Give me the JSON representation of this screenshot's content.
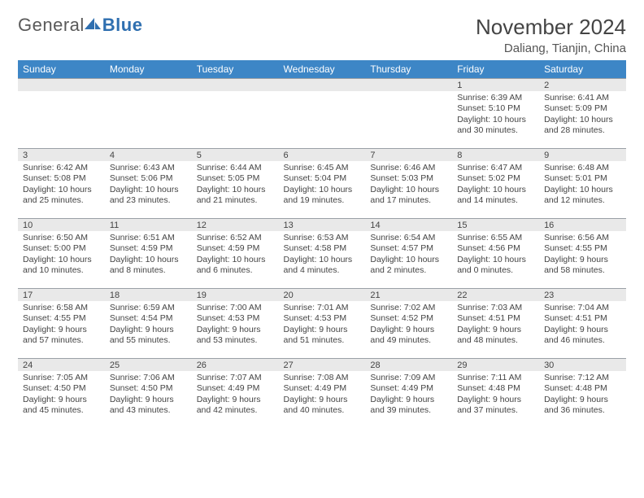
{
  "logo": {
    "general": "General",
    "blue": "Blue"
  },
  "title": "November 2024",
  "location": "Daliang, Tianjin, China",
  "colors": {
    "header_bg": "#3d86c6",
    "header_fg": "#ffffff",
    "daynum_bg": "#e9e9e9",
    "daynum_border": "#9aa0a6",
    "text": "#444444",
    "logo_gray": "#5a5a5a",
    "logo_blue": "#2f6fb0"
  },
  "weekdays": [
    "Sunday",
    "Monday",
    "Tuesday",
    "Wednesday",
    "Thursday",
    "Friday",
    "Saturday"
  ],
  "weeks": [
    [
      {
        "n": "",
        "sr": "",
        "ss": "",
        "dl": ""
      },
      {
        "n": "",
        "sr": "",
        "ss": "",
        "dl": ""
      },
      {
        "n": "",
        "sr": "",
        "ss": "",
        "dl": ""
      },
      {
        "n": "",
        "sr": "",
        "ss": "",
        "dl": ""
      },
      {
        "n": "",
        "sr": "",
        "ss": "",
        "dl": ""
      },
      {
        "n": "1",
        "sr": "Sunrise: 6:39 AM",
        "ss": "Sunset: 5:10 PM",
        "dl": "Daylight: 10 hours and 30 minutes."
      },
      {
        "n": "2",
        "sr": "Sunrise: 6:41 AM",
        "ss": "Sunset: 5:09 PM",
        "dl": "Daylight: 10 hours and 28 minutes."
      }
    ],
    [
      {
        "n": "3",
        "sr": "Sunrise: 6:42 AM",
        "ss": "Sunset: 5:08 PM",
        "dl": "Daylight: 10 hours and 25 minutes."
      },
      {
        "n": "4",
        "sr": "Sunrise: 6:43 AM",
        "ss": "Sunset: 5:06 PM",
        "dl": "Daylight: 10 hours and 23 minutes."
      },
      {
        "n": "5",
        "sr": "Sunrise: 6:44 AM",
        "ss": "Sunset: 5:05 PM",
        "dl": "Daylight: 10 hours and 21 minutes."
      },
      {
        "n": "6",
        "sr": "Sunrise: 6:45 AM",
        "ss": "Sunset: 5:04 PM",
        "dl": "Daylight: 10 hours and 19 minutes."
      },
      {
        "n": "7",
        "sr": "Sunrise: 6:46 AM",
        "ss": "Sunset: 5:03 PM",
        "dl": "Daylight: 10 hours and 17 minutes."
      },
      {
        "n": "8",
        "sr": "Sunrise: 6:47 AM",
        "ss": "Sunset: 5:02 PM",
        "dl": "Daylight: 10 hours and 14 minutes."
      },
      {
        "n": "9",
        "sr": "Sunrise: 6:48 AM",
        "ss": "Sunset: 5:01 PM",
        "dl": "Daylight: 10 hours and 12 minutes."
      }
    ],
    [
      {
        "n": "10",
        "sr": "Sunrise: 6:50 AM",
        "ss": "Sunset: 5:00 PM",
        "dl": "Daylight: 10 hours and 10 minutes."
      },
      {
        "n": "11",
        "sr": "Sunrise: 6:51 AM",
        "ss": "Sunset: 4:59 PM",
        "dl": "Daylight: 10 hours and 8 minutes."
      },
      {
        "n": "12",
        "sr": "Sunrise: 6:52 AM",
        "ss": "Sunset: 4:59 PM",
        "dl": "Daylight: 10 hours and 6 minutes."
      },
      {
        "n": "13",
        "sr": "Sunrise: 6:53 AM",
        "ss": "Sunset: 4:58 PM",
        "dl": "Daylight: 10 hours and 4 minutes."
      },
      {
        "n": "14",
        "sr": "Sunrise: 6:54 AM",
        "ss": "Sunset: 4:57 PM",
        "dl": "Daylight: 10 hours and 2 minutes."
      },
      {
        "n": "15",
        "sr": "Sunrise: 6:55 AM",
        "ss": "Sunset: 4:56 PM",
        "dl": "Daylight: 10 hours and 0 minutes."
      },
      {
        "n": "16",
        "sr": "Sunrise: 6:56 AM",
        "ss": "Sunset: 4:55 PM",
        "dl": "Daylight: 9 hours and 58 minutes."
      }
    ],
    [
      {
        "n": "17",
        "sr": "Sunrise: 6:58 AM",
        "ss": "Sunset: 4:55 PM",
        "dl": "Daylight: 9 hours and 57 minutes."
      },
      {
        "n": "18",
        "sr": "Sunrise: 6:59 AM",
        "ss": "Sunset: 4:54 PM",
        "dl": "Daylight: 9 hours and 55 minutes."
      },
      {
        "n": "19",
        "sr": "Sunrise: 7:00 AM",
        "ss": "Sunset: 4:53 PM",
        "dl": "Daylight: 9 hours and 53 minutes."
      },
      {
        "n": "20",
        "sr": "Sunrise: 7:01 AM",
        "ss": "Sunset: 4:53 PM",
        "dl": "Daylight: 9 hours and 51 minutes."
      },
      {
        "n": "21",
        "sr": "Sunrise: 7:02 AM",
        "ss": "Sunset: 4:52 PM",
        "dl": "Daylight: 9 hours and 49 minutes."
      },
      {
        "n": "22",
        "sr": "Sunrise: 7:03 AM",
        "ss": "Sunset: 4:51 PM",
        "dl": "Daylight: 9 hours and 48 minutes."
      },
      {
        "n": "23",
        "sr": "Sunrise: 7:04 AM",
        "ss": "Sunset: 4:51 PM",
        "dl": "Daylight: 9 hours and 46 minutes."
      }
    ],
    [
      {
        "n": "24",
        "sr": "Sunrise: 7:05 AM",
        "ss": "Sunset: 4:50 PM",
        "dl": "Daylight: 9 hours and 45 minutes."
      },
      {
        "n": "25",
        "sr": "Sunrise: 7:06 AM",
        "ss": "Sunset: 4:50 PM",
        "dl": "Daylight: 9 hours and 43 minutes."
      },
      {
        "n": "26",
        "sr": "Sunrise: 7:07 AM",
        "ss": "Sunset: 4:49 PM",
        "dl": "Daylight: 9 hours and 42 minutes."
      },
      {
        "n": "27",
        "sr": "Sunrise: 7:08 AM",
        "ss": "Sunset: 4:49 PM",
        "dl": "Daylight: 9 hours and 40 minutes."
      },
      {
        "n": "28",
        "sr": "Sunrise: 7:09 AM",
        "ss": "Sunset: 4:49 PM",
        "dl": "Daylight: 9 hours and 39 minutes."
      },
      {
        "n": "29",
        "sr": "Sunrise: 7:11 AM",
        "ss": "Sunset: 4:48 PM",
        "dl": "Daylight: 9 hours and 37 minutes."
      },
      {
        "n": "30",
        "sr": "Sunrise: 7:12 AM",
        "ss": "Sunset: 4:48 PM",
        "dl": "Daylight: 9 hours and 36 minutes."
      }
    ]
  ]
}
